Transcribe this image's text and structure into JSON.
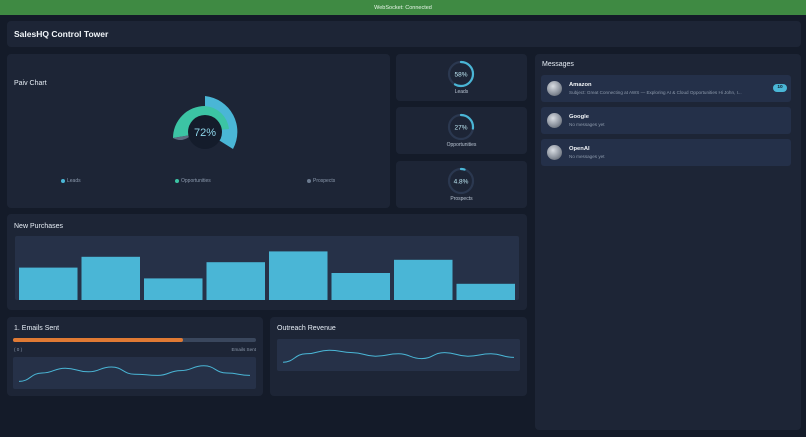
{
  "status_bar": {
    "text": "WebSocket: Connected"
  },
  "header": {
    "title": "SalesHQ Control Tower"
  },
  "pie_chart": {
    "title": "Paiv Chart",
    "center_label": "72%",
    "legend": [
      {
        "label": "Leads",
        "color": "#4ab6d6"
      },
      {
        "label": "Opportunities",
        "color": "#3cc4a4"
      },
      {
        "label": "Prospects",
        "color": "#6b7a8f"
      }
    ]
  },
  "kpis": [
    {
      "value": "58%",
      "label": "Leads",
      "fraction": 0.58
    },
    {
      "value": "27%",
      "label": "Opportunities",
      "fraction": 0.27
    },
    {
      "value": "4.8%",
      "label": "Prospects",
      "fraction": 0.048
    }
  ],
  "messages": {
    "title": "Messages",
    "items": [
      {
        "name": "Amazon",
        "subtitle": "Subject: Great Connecting at AWS — Exploring AI & Cloud Opportunities Hi John, I...",
        "badge": "10"
      },
      {
        "name": "Google",
        "subtitle": "No messages yet",
        "badge": ""
      },
      {
        "name": "OpenAI",
        "subtitle": "No messages yet",
        "badge": ""
      }
    ]
  },
  "purchases": {
    "title": "New Purchases"
  },
  "emails": {
    "title": "1. Emails Sent",
    "progress": 0.7,
    "axis_left": "( 0 )",
    "axis_right": "Emails Sent"
  },
  "revenue": {
    "title": "Outreach Revenue"
  },
  "colors": {
    "accent": "#4ab6d6",
    "teal": "#3cc4a4",
    "orange": "#e07a34",
    "status_green": "#3f8a43"
  },
  "chart_data": [
    {
      "type": "pie",
      "title": "Paiv Chart",
      "categories": [
        "Leads",
        "Opportunities",
        "Prospects"
      ],
      "values": [
        58,
        27,
        4.8
      ],
      "center_label": "72%"
    },
    {
      "type": "bar",
      "title": "New Purchases",
      "categories": [
        "1",
        "2",
        "3",
        "4",
        "5",
        "6",
        "7",
        "8"
      ],
      "values": [
        54,
        72,
        36,
        63,
        81,
        45,
        67,
        27
      ],
      "ylim": [
        0,
        100
      ]
    },
    {
      "type": "line",
      "title": "1. Emails Sent",
      "x": [
        0,
        1,
        2,
        3,
        4,
        5,
        6,
        7,
        8,
        9,
        10
      ],
      "values": [
        3,
        10,
        14,
        11,
        15,
        9,
        8,
        12,
        16,
        10,
        8
      ],
      "ylim": [
        0,
        20
      ]
    },
    {
      "type": "line",
      "title": "Outreach Revenue",
      "x": [
        0,
        1,
        2,
        3,
        4,
        5,
        6,
        7,
        8,
        9,
        10
      ],
      "values": [
        4,
        11,
        14,
        12,
        9,
        11,
        7,
        12,
        9,
        11,
        8
      ],
      "ylim": [
        0,
        20
      ]
    }
  ]
}
